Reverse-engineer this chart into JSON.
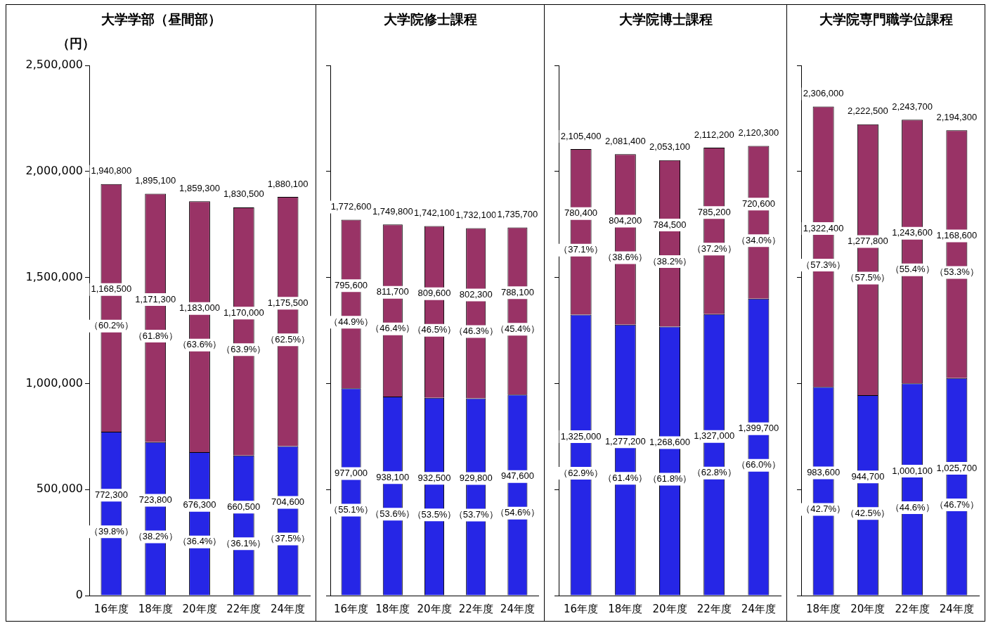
{
  "chart_data": [
    {
      "type": "bar",
      "title": "大学学部（昼間部）",
      "ylabel": "（円）",
      "stacked": true,
      "categories": [
        "16年度",
        "18年度",
        "20年度",
        "22年度",
        "24年度"
      ],
      "ylim": [
        0,
        2500000
      ],
      "yticks": [
        {
          "value": 0,
          "label": "0"
        },
        {
          "value": 500000,
          "label": "500,000"
        },
        {
          "value": 1000000,
          "label": "1,000,000"
        },
        {
          "value": 1500000,
          "label": "1,500,000"
        },
        {
          "value": 2000000,
          "label": "2,000,000"
        },
        {
          "value": 2500000,
          "label": "2,500,000"
        }
      ],
      "series": [
        {
          "color": "#2626e6",
          "values": [
            772300,
            723800,
            676300,
            660500,
            704600
          ],
          "value_labels": [
            "772,300\n（39.8%）",
            "723,800\n（38.2%）",
            "676,300\n（36.4%）",
            "660,500\n（36.1%）",
            "704,600\n（37.5%）"
          ]
        },
        {
          "color": "#993366",
          "values": [
            1168500,
            1171300,
            1183000,
            1170000,
            1175500
          ],
          "value_labels": [
            "1,168,500\n（60.2%）",
            "1,171,300\n（61.8%）",
            "1,183,000\n（63.6%）",
            "1,170,000\n（63.9%）",
            "1,175,500\n（62.5%）"
          ]
        }
      ],
      "totals": [
        "1,940,800",
        "1,895,100",
        "1,859,300",
        "1,830,500",
        "1,880,100"
      ]
    },
    {
      "type": "bar",
      "title": "大学院修士課程",
      "stacked": true,
      "tick_labels": "x",
      "categories": [
        "16年度",
        "18年度",
        "20年度",
        "22年度",
        "24年度"
      ],
      "ylim": [
        0,
        2500000
      ],
      "yticks": [
        {
          "value": 0,
          "label": null
        },
        {
          "value": 500000,
          "label": null
        },
        {
          "value": 1000000,
          "label": null
        },
        {
          "value": 1500000,
          "label": null
        },
        {
          "value": 2000000,
          "label": null
        },
        {
          "value": 2500000,
          "label": null
        }
      ],
      "series": [
        {
          "color": "#2626e6",
          "values": [
            977000,
            938100,
            932500,
            929800,
            947600
          ],
          "value_labels": [
            "977,000\n（55.1%）",
            "938,100\n（53.6%）",
            "932,500\n（53.5%）",
            "929,800\n（53.7%）",
            "947,600\n（54.6%）"
          ]
        },
        {
          "color": "#993366",
          "values": [
            795600,
            811700,
            809600,
            802300,
            788100
          ],
          "value_labels": [
            "795,600\n（44.9%）",
            "811,700\n（46.4%）",
            "809,600\n（46.5%）",
            "802,300\n（46.3%）",
            "788,100\n（45.4%）"
          ]
        }
      ],
      "totals": [
        "1,772,600",
        "1,749,800",
        "1,742,100",
        "1,732,100",
        "1,735,700"
      ]
    },
    {
      "type": "bar",
      "title": "大学院博士課程",
      "stacked": true,
      "tick_labels": "x",
      "categories": [
        "16年度",
        "18年度",
        "20年度",
        "22年度",
        "24年度"
      ],
      "ylim": [
        0,
        2500000
      ],
      "yticks": [
        {
          "value": 0,
          "label": null
        },
        {
          "value": 500000,
          "label": null
        },
        {
          "value": 1000000,
          "label": null
        },
        {
          "value": 1500000,
          "label": null
        },
        {
          "value": 2000000,
          "label": null
        },
        {
          "value": 2500000,
          "label": null
        }
      ],
      "series": [
        {
          "color": "#2626e6",
          "values": [
            1325000,
            1277200,
            1268600,
            1327000,
            1399700
          ],
          "value_labels": [
            "1,325,000\n（62.9%）",
            "1,277,200\n（61.4%）",
            "1,268,600\n（61.8%）",
            "1,327,000\n（62.8%）",
            "1,399,700\n（66.0%）"
          ]
        },
        {
          "color": "#993366",
          "values": [
            780400,
            804200,
            784500,
            785200,
            720600
          ],
          "value_labels": [
            "780,400\n（37.1%）",
            "804,200\n（38.6%）",
            "784,500\n（38.2%）",
            "785,200\n（37.2%）",
            "720,600\n（34.0%）"
          ]
        }
      ],
      "totals": [
        "2,105,400",
        "2,081,400",
        "2,053,100",
        "2,112,200",
        "2,120,300"
      ]
    },
    {
      "type": "bar",
      "title": "大学院専門職学位課程",
      "stacked": true,
      "tick_labels": "x",
      "categories": [
        "18年度",
        "20年度",
        "22年度",
        "24年度"
      ],
      "ylim": [
        0,
        2500000
      ],
      "yticks": [
        {
          "value": 0,
          "label": null
        },
        {
          "value": 500000,
          "label": null
        },
        {
          "value": 1000000,
          "label": null
        },
        {
          "value": 1500000,
          "label": null
        },
        {
          "value": 2000000,
          "label": null
        },
        {
          "value": 2500000,
          "label": null
        }
      ],
      "series": [
        {
          "color": "#2626e6",
          "values": [
            983600,
            944700,
            1000100,
            1025700
          ],
          "value_labels": [
            "983,600\n（42.7%）",
            "944,700\n（42.5%）",
            "1,000,100\n（44.6%）",
            "1,025,700\n（46.7%）"
          ]
        },
        {
          "color": "#993366",
          "values": [
            1322400,
            1277800,
            1243600,
            1168600
          ],
          "value_labels": [
            "1,322,400\n（57.3%）",
            "1,277,800\n（57.5%）",
            "1,243,600\n（55.4%）",
            "1,168,600\n（53.3%）"
          ]
        }
      ],
      "totals": [
        "2,306,000",
        "2,222,500",
        "2,243,700",
        "2,194,300"
      ]
    }
  ]
}
